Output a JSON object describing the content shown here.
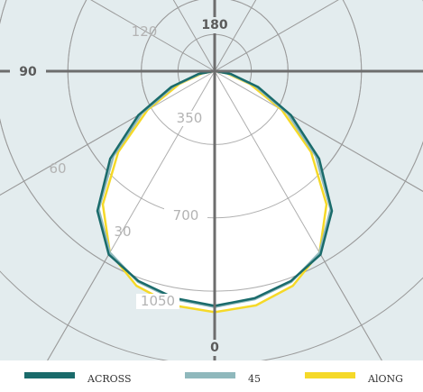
{
  "chart_data": {
    "type": "polar",
    "title": "",
    "radial_ticks": [
      350,
      700,
      1050
    ],
    "angle_labels": [
      {
        "key": "a180",
        "text": "180"
      },
      {
        "key": "a120",
        "text": "120"
      },
      {
        "key": "a90",
        "text": "90"
      },
      {
        "key": "a60",
        "text": "60"
      },
      {
        "key": "a30",
        "text": "30"
      },
      {
        "key": "a0",
        "text": "0"
      }
    ],
    "radial_labels": [
      "350",
      "700",
      "1050"
    ],
    "series": [
      {
        "name": "ACROSS",
        "color": "#1a6b6b",
        "angles": [
          0,
          10,
          20,
          30,
          40,
          50,
          60,
          70,
          80,
          90
        ],
        "values": [
          1120,
          1100,
          1065,
          1010,
          870,
          650,
          420,
          220,
          80,
          5
        ]
      },
      {
        "name": "45",
        "color": "#8fb8bc",
        "angles": [
          0,
          10,
          20,
          30,
          40,
          50,
          60,
          70,
          80,
          90
        ],
        "values": [
          1125,
          1105,
          1070,
          1000,
          860,
          630,
          400,
          205,
          70,
          5
        ]
      },
      {
        "name": "ALONG",
        "color": "#f5d928",
        "angles": [
          0,
          10,
          20,
          30,
          40,
          50,
          60,
          70,
          80,
          90
        ],
        "values": [
          1150,
          1135,
          1090,
          1000,
          830,
          600,
          370,
          180,
          60,
          5
        ]
      }
    ]
  },
  "legend": [
    {
      "label": "ACROSS",
      "color": "#1a6b6b"
    },
    {
      "label": "45",
      "color": "#8fb8bc"
    },
    {
      "label": "AlONG",
      "color": "#f5d928"
    }
  ],
  "colors": {
    "plot_background": "#e3ecee",
    "inner_fill": "#ffffff",
    "grid": "#9b9b9b",
    "axis": "#6d6d6d"
  }
}
